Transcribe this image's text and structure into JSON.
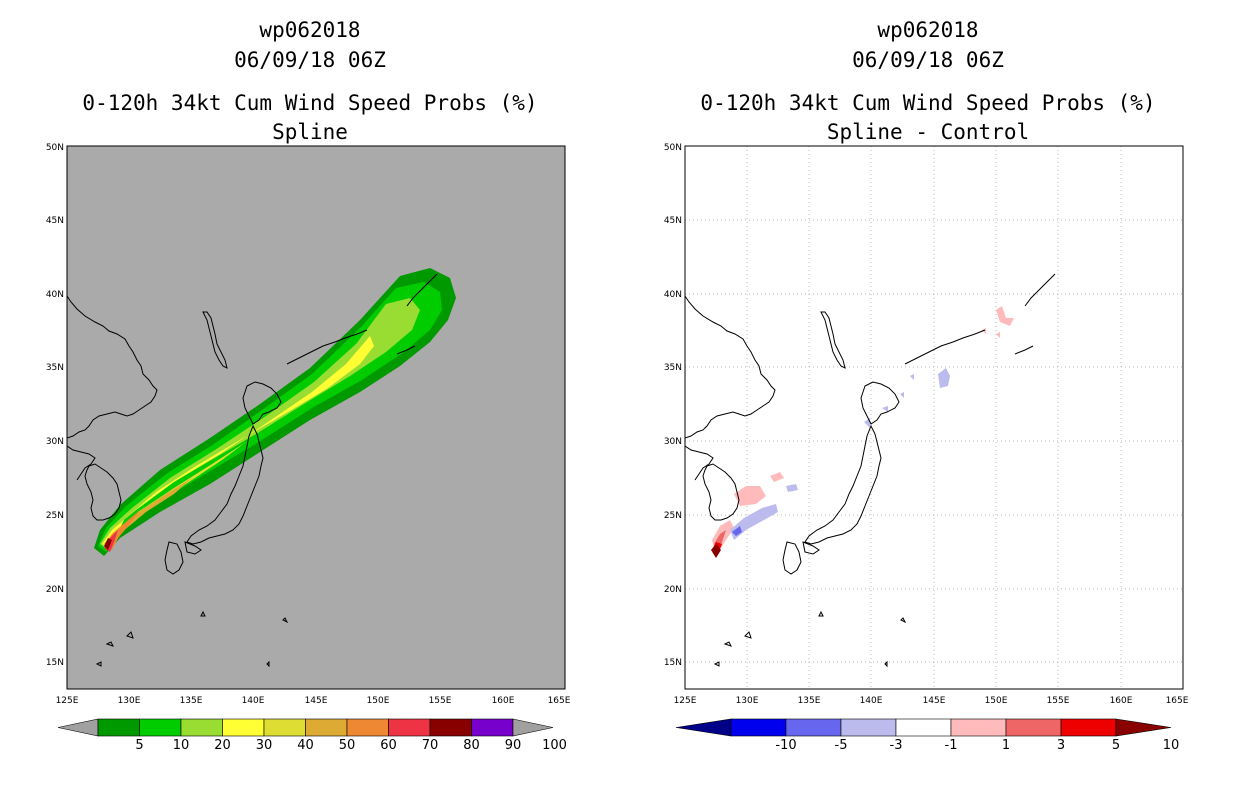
{
  "panels": [
    {
      "id": "spline",
      "storm": "wp062018",
      "datetime": "06/09/18 06Z",
      "product": "0-120h 34kt Cum Wind Speed Probs (%)",
      "subtitle": "Spline",
      "background": "#aaaaaa",
      "grid": false,
      "colorbar": {
        "labels": [
          "5",
          "10",
          "20",
          "30",
          "40",
          "50",
          "60",
          "70",
          "80",
          "90",
          "100"
        ],
        "colors": [
          "#a0a0a0",
          "#009900",
          "#00cc00",
          "#99dd33",
          "#ffff33",
          "#dddd33",
          "#ddaa33",
          "#ee8833",
          "#ee3344",
          "#880000",
          "#7700cc",
          "#a0a0a0"
        ]
      }
    },
    {
      "id": "diff",
      "storm": "wp062018",
      "datetime": "06/09/18 06Z",
      "product": "0-120h 34kt Cum Wind Speed Probs (%)",
      "subtitle": "Spline - Control",
      "background": "#ffffff",
      "grid": true,
      "colorbar": {
        "labels": [
          "-10",
          "-5",
          "-3",
          "-1",
          "1",
          "3",
          "5",
          "10"
        ],
        "colors": [
          "#000088",
          "#0000ee",
          "#6666ee",
          "#bbbbee",
          "#ffffff",
          "#ffbbbb",
          "#ee6666",
          "#ee0000",
          "#880000"
        ]
      }
    }
  ],
  "axes": {
    "lon_labels": [
      "125E",
      "130E",
      "135E",
      "140E",
      "145E",
      "150E",
      "155E",
      "160E",
      "165E"
    ],
    "lat_labels": [
      "15N",
      "20N",
      "25N",
      "30N",
      "35N",
      "40N",
      "45N",
      "50N"
    ],
    "lon_range": [
      125,
      165
    ],
    "lat_range": [
      13,
      50
    ]
  }
}
